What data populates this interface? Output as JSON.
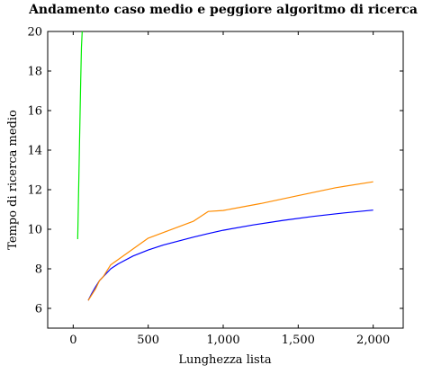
{
  "chart_data": {
    "type": "line",
    "title": "Andamento caso medio e peggiore algoritmo di ricerca",
    "xlabel": "Lunghezza lista",
    "ylabel": "Tempo di ricerca medio",
    "xlim": [
      -170,
      2200
    ],
    "ylim": [
      5,
      20
    ],
    "x_ticks": [
      0,
      500,
      1000,
      1500,
      2000
    ],
    "x_tick_labels": [
      "0",
      "500",
      "1,000",
      "1,500",
      "2,000"
    ],
    "y_ticks": [
      6,
      8,
      10,
      12,
      14,
      16,
      18,
      20
    ],
    "y_tick_labels": [
      "6",
      "8",
      "10",
      "12",
      "14",
      "16",
      "18",
      "20"
    ],
    "grid": false,
    "legend": "none",
    "series": [
      {
        "color": "#00ee00",
        "x": [
          30,
          35,
          40,
          45,
          50,
          55,
          60
        ],
        "y": [
          9.5,
          11.5,
          13.5,
          15.5,
          17.5,
          19.2,
          20
        ]
      },
      {
        "color": "#0000ff",
        "x": [
          100,
          120,
          150,
          175,
          200,
          250,
          300,
          400,
          500,
          600,
          700,
          800,
          900,
          1000,
          1200,
          1400,
          1600,
          1800,
          2000
        ],
        "y": [
          6.4,
          6.7,
          7.1,
          7.4,
          7.6,
          8.0,
          8.25,
          8.65,
          8.95,
          9.2,
          9.4,
          9.6,
          9.78,
          9.95,
          10.22,
          10.45,
          10.65,
          10.82,
          10.97
        ]
      },
      {
        "color": "#ff8c00",
        "x": [
          100,
          150,
          175,
          200,
          250,
          500,
          800,
          900,
          1000,
          1250,
          1500,
          1750,
          2000
        ],
        "y": [
          6.4,
          7.0,
          7.4,
          7.6,
          8.2,
          9.55,
          10.4,
          10.9,
          10.95,
          11.3,
          11.7,
          12.1,
          12.4
        ]
      }
    ]
  }
}
